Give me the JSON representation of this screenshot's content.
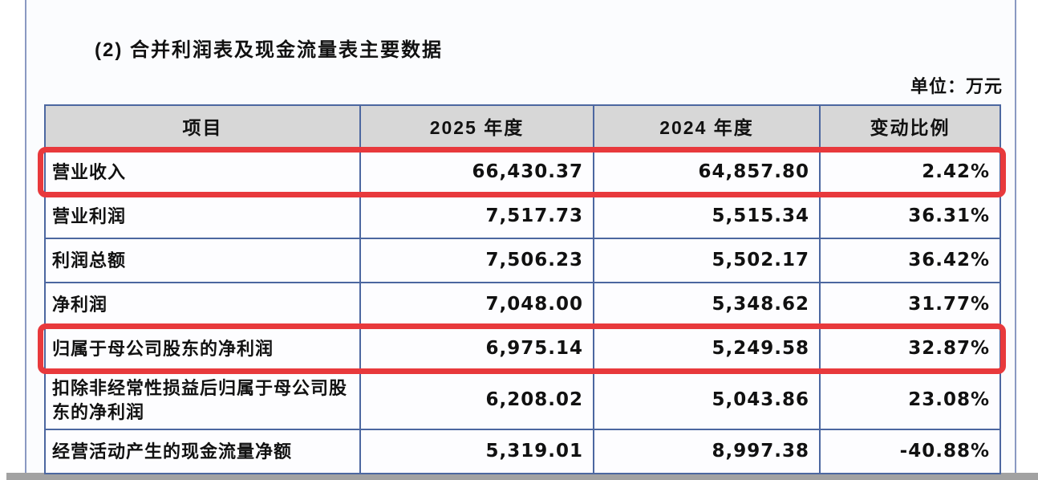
{
  "page": {
    "title": "(2) 合并利润表及现金流量表主要数据",
    "unit_label": "单位：万元"
  },
  "table": {
    "headers": [
      "项目",
      "2025 年度",
      "2024 年度",
      "变动比例"
    ],
    "rows": [
      {
        "label": "营业收入",
        "y2025": "66,430.37",
        "y2024": "64,857.80",
        "change": "2.42%",
        "highlighted": true
      },
      {
        "label": "营业利润",
        "y2025": "7,517.73",
        "y2024": "5,515.34",
        "change": "36.31%",
        "highlighted": false
      },
      {
        "label": "利润总额",
        "y2025": "7,506.23",
        "y2024": "5,502.17",
        "change": "36.42%",
        "highlighted": false
      },
      {
        "label": "净利润",
        "y2025": "7,048.00",
        "y2024": "5,348.62",
        "change": "31.77%",
        "highlighted": false
      },
      {
        "label": "归属于母公司股东的净利润",
        "y2025": "6,975.14",
        "y2024": "5,249.58",
        "change": "32.87%",
        "highlighted": true
      },
      {
        "label": "扣除非经常性损益后归属于母公司股东的净利润",
        "y2025": "6,208.02",
        "y2024": "5,043.86",
        "change": "23.08%",
        "highlighted": false
      },
      {
        "label": "经营活动产生的现金流量净额",
        "y2025": "5,319.01",
        "y2024": "8,997.38",
        "change": "-40.88%",
        "highlighted": false
      }
    ]
  },
  "colors": {
    "highlight_red": "#e8393c",
    "header_bg": "#d7d7d7",
    "table_border": "#4c67a0",
    "page_line": "#8a99c2"
  }
}
